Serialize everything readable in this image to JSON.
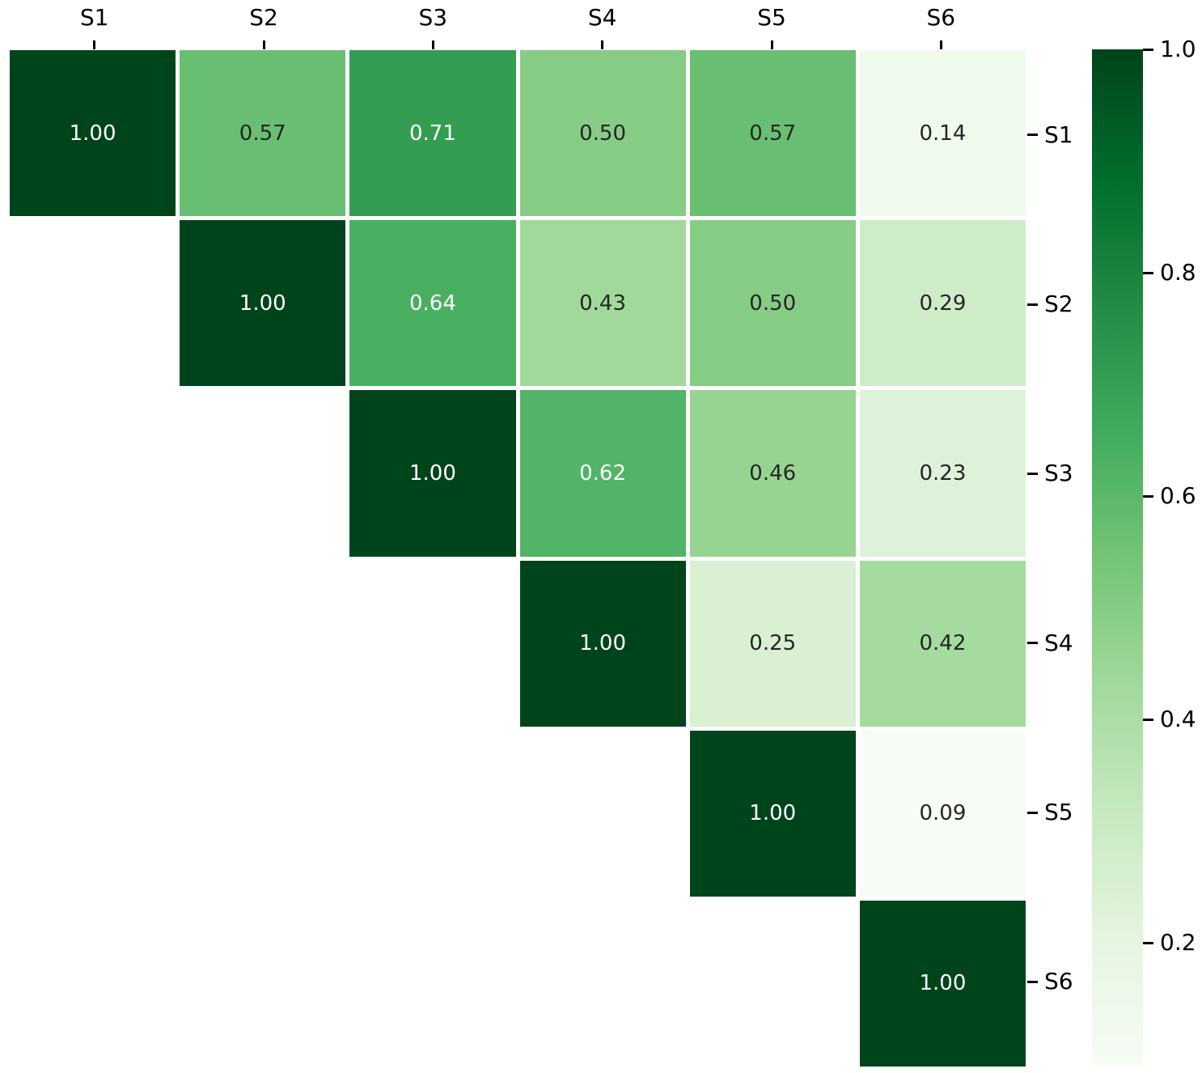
{
  "chart_data": {
    "type": "heatmap",
    "description": "Upper-triangular correlation matrix heatmap with annotated values",
    "x_labels": [
      "S1",
      "S2",
      "S3",
      "S4",
      "S5",
      "S6"
    ],
    "y_labels": [
      "S1",
      "S2",
      "S3",
      "S4",
      "S5",
      "S6"
    ],
    "matrix": [
      [
        1.0,
        0.57,
        0.71,
        0.5,
        0.57,
        0.14
      ],
      [
        null,
        1.0,
        0.64,
        0.43,
        0.5,
        0.29
      ],
      [
        null,
        null,
        1.0,
        0.62,
        0.46,
        0.23
      ],
      [
        null,
        null,
        null,
        1.0,
        0.25,
        0.42
      ],
      [
        null,
        null,
        null,
        null,
        1.0,
        0.09
      ],
      [
        null,
        null,
        null,
        null,
        null,
        1.0
      ]
    ],
    "annot_format": ".2f",
    "mask": "lower-triangle-blank",
    "vmin": 0.09,
    "vmax": 1.0,
    "colormap": {
      "name": "Greens",
      "stops": [
        "#f7fcf5",
        "#e5f5e0",
        "#c7e9c0",
        "#a1d99b",
        "#74c476",
        "#41ab5d",
        "#238b45",
        "#006d2c",
        "#00441b"
      ]
    },
    "colorbar": {
      "position": "right",
      "tick_values": [
        1.0,
        0.8,
        0.6,
        0.4,
        0.2
      ],
      "tick_labels": [
        "1.0",
        "0.8",
        "0.6",
        "0.4",
        "0.2"
      ]
    },
    "annotation_colors": {
      "on_dark": "#ffffff",
      "on_light": "#262626"
    },
    "grid_line_color": "#ffffff",
    "background": "#ffffff",
    "legend": "none",
    "title": ""
  }
}
